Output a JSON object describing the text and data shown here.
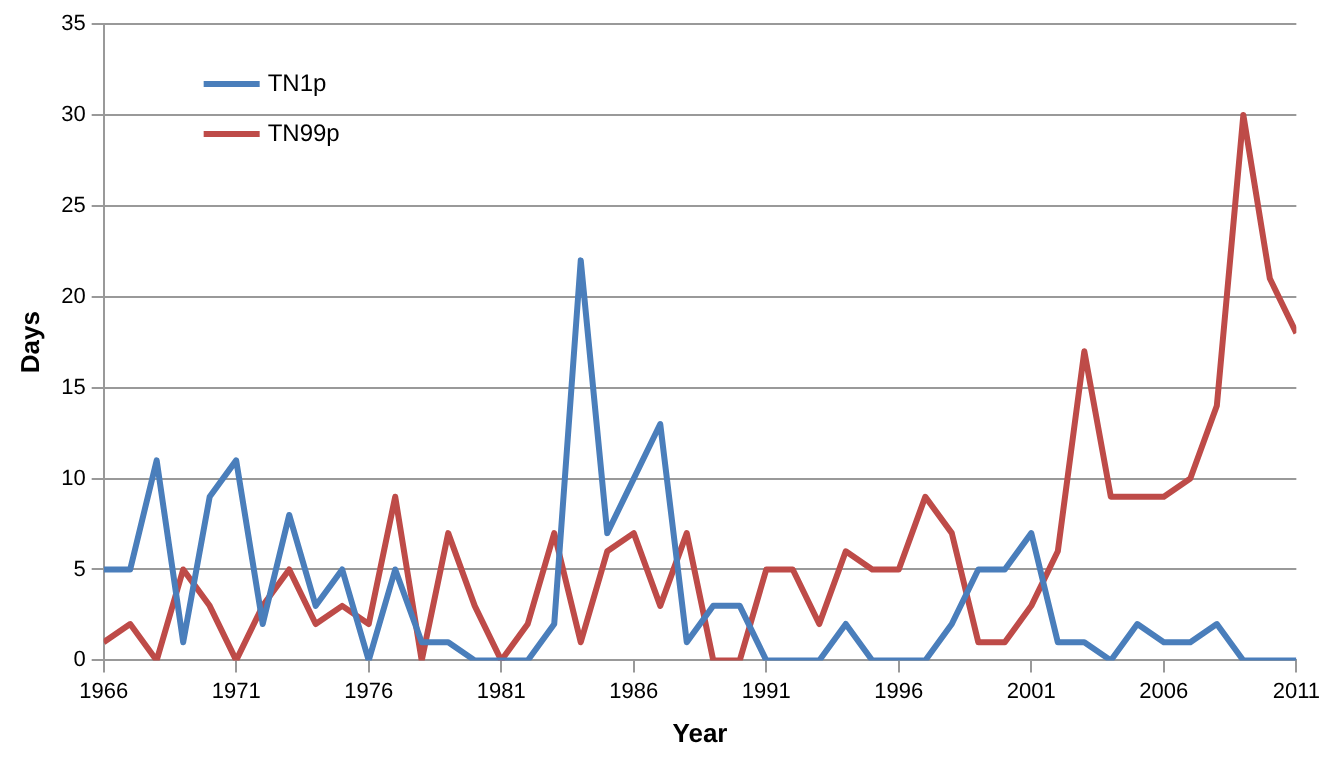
{
  "chart_data": {
    "type": "line",
    "xlabel": "Year",
    "ylabel": "Days",
    "x": [
      1966,
      1967,
      1968,
      1969,
      1970,
      1971,
      1972,
      1973,
      1974,
      1975,
      1976,
      1977,
      1978,
      1979,
      1980,
      1981,
      1982,
      1983,
      1984,
      1985,
      1986,
      1987,
      1988,
      1989,
      1990,
      1991,
      1992,
      1993,
      1994,
      1995,
      1996,
      1997,
      1998,
      1999,
      2000,
      2001,
      2002,
      2003,
      2004,
      2005,
      2006,
      2007,
      2008,
      2009,
      2010,
      2011
    ],
    "series": [
      {
        "name": "TN1p",
        "color": "#4a7ebb",
        "values": [
          5,
          5,
          11,
          1,
          9,
          11,
          2,
          8,
          3,
          5,
          0,
          5,
          1,
          1,
          0,
          0,
          0,
          2,
          22,
          7,
          10,
          13,
          1,
          3,
          3,
          0,
          0,
          0,
          2,
          0,
          0,
          0,
          2,
          5,
          5,
          7,
          1,
          1,
          0,
          2,
          1,
          1,
          2,
          0,
          0,
          0
        ]
      },
      {
        "name": "TN99p",
        "color": "#be4b48",
        "values": [
          1,
          2,
          0,
          5,
          3,
          0,
          3,
          5,
          2,
          3,
          2,
          9,
          0,
          7,
          3,
          0,
          2,
          7,
          1,
          6,
          7,
          3,
          7,
          0,
          0,
          5,
          5,
          2,
          6,
          5,
          5,
          9,
          7,
          1,
          1,
          3,
          6,
          17,
          9,
          9,
          9,
          10,
          14,
          30,
          21,
          18
        ]
      }
    ],
    "xlim": [
      1966,
      2011
    ],
    "xticks": [
      1966,
      1971,
      1976,
      1981,
      1986,
      1991,
      1996,
      2001,
      2006,
      2011
    ],
    "ylim": [
      0,
      35
    ],
    "yticks": [
      0,
      5,
      10,
      15,
      20,
      25,
      30,
      35
    ],
    "grid": "y",
    "legend": "top left",
    "marker": "none",
    "line_style": "solid"
  }
}
